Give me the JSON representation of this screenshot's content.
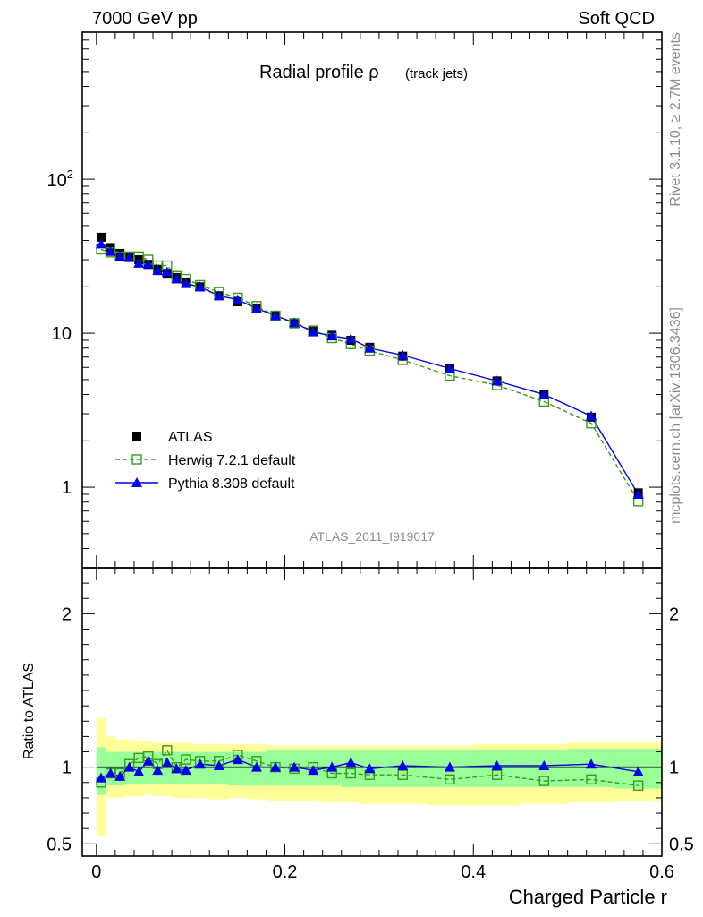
{
  "header": {
    "left": "7000 GeV pp",
    "right": "Soft QCD"
  },
  "side_text": {
    "rivet": "Rivet 3.1.10, ≥ 2.7M events",
    "mcplots": "mcplots.cern.ch [arXiv:1306.3436]"
  },
  "chart_data": [
    {
      "type": "line",
      "title": "Radial profile ρ",
      "title_suffix": "(track jets)",
      "watermark": "ATLAS_2011_I919017",
      "xlabel": "",
      "ylabel": "",
      "ylog": true,
      "xlim": [
        -0.015,
        0.6
      ],
      "ylim": [
        0.3,
        900
      ],
      "y_ticks": [
        {
          "value": 1,
          "label": "1"
        },
        {
          "value": 10,
          "label": "10"
        },
        {
          "value": 100,
          "label": "10",
          "sup": "2"
        }
      ],
      "x": [
        0.005,
        0.015,
        0.025,
        0.035,
        0.045,
        0.055,
        0.065,
        0.075,
        0.085,
        0.095,
        0.11,
        0.13,
        0.15,
        0.17,
        0.19,
        0.21,
        0.23,
        0.25,
        0.27,
        0.29,
        0.325,
        0.375,
        0.425,
        0.475,
        0.525,
        0.575
      ],
      "legend": {
        "position": "lower-left"
      },
      "series": [
        {
          "name": "ATLAS",
          "marker": "square-filled",
          "color": "#000000",
          "values": [
            42,
            36,
            33,
            31.5,
            30,
            28,
            26,
            24.5,
            23,
            21.5,
            20,
            17.5,
            16,
            14.5,
            13,
            11.7,
            10.5,
            9.7,
            9.0,
            8.1,
            7.1,
            5.9,
            4.9,
            4.0,
            2.85,
            0.92
          ]
        },
        {
          "name": "Herwig 7.2.1 default",
          "marker": "square-open",
          "color": "#3a9a1e",
          "dashed": true,
          "values": [
            35,
            33.5,
            31.5,
            31.5,
            31.5,
            30,
            27.5,
            27.5,
            23.5,
            22.5,
            20.5,
            18.5,
            17,
            15,
            13,
            11.6,
            10.4,
            9.3,
            8.5,
            7.7,
            6.7,
            5.3,
            4.6,
            3.6,
            2.6,
            0.81
          ]
        },
        {
          "name": "Pythia 8.308 default",
          "marker": "triangle",
          "color": "#0000ee",
          "values": [
            38,
            34,
            31.5,
            31,
            28.5,
            28,
            25.5,
            25,
            22.5,
            21,
            20,
            17.5,
            16.5,
            14.5,
            13,
            11.7,
            10.2,
            9.6,
            9.2,
            8.0,
            7.2,
            5.9,
            4.9,
            4.0,
            2.9,
            0.9
          ]
        }
      ]
    },
    {
      "type": "line",
      "ylabel": "Ratio to ATLAS",
      "xlabel": "Charged Particle r",
      "xlim": [
        -0.015,
        0.6
      ],
      "ylim": [
        0.42,
        2.3
      ],
      "y_ticks": [
        {
          "value": 0.5,
          "label": "0.5"
        },
        {
          "value": 1,
          "label": "1"
        },
        {
          "value": 2,
          "label": "2"
        }
      ],
      "x_ticks": [
        {
          "value": 0,
          "label": "0"
        },
        {
          "value": 0.2,
          "label": "0.2"
        },
        {
          "value": 0.4,
          "label": "0.4"
        },
        {
          "value": 0.6,
          "label": "0.6"
        }
      ],
      "x": [
        0.005,
        0.015,
        0.025,
        0.035,
        0.045,
        0.055,
        0.065,
        0.075,
        0.085,
        0.095,
        0.11,
        0.13,
        0.15,
        0.17,
        0.19,
        0.21,
        0.23,
        0.25,
        0.27,
        0.29,
        0.325,
        0.375,
        0.425,
        0.475,
        0.525,
        0.575
      ],
      "bin_edges": [
        0,
        0.01,
        0.02,
        0.03,
        0.04,
        0.05,
        0.06,
        0.07,
        0.08,
        0.09,
        0.1,
        0.12,
        0.14,
        0.16,
        0.18,
        0.2,
        0.22,
        0.24,
        0.26,
        0.28,
        0.3,
        0.35,
        0.4,
        0.45,
        0.5,
        0.55,
        0.6
      ],
      "bands": {
        "yellow_color": "#ffff99",
        "green_color": "#99ff99",
        "yellow_lo": [
          0.55,
          0.8,
          0.8,
          0.81,
          0.81,
          0.82,
          0.81,
          0.81,
          0.8,
          0.8,
          0.8,
          0.79,
          0.8,
          0.79,
          0.78,
          0.78,
          0.78,
          0.77,
          0.77,
          0.76,
          0.76,
          0.75,
          0.75,
          0.76,
          0.77,
          0.78
        ],
        "yellow_hi": [
          1.32,
          1.2,
          1.18,
          1.18,
          1.17,
          1.17,
          1.16,
          1.16,
          1.16,
          1.16,
          1.15,
          1.15,
          1.15,
          1.15,
          1.14,
          1.14,
          1.14,
          1.14,
          1.14,
          1.14,
          1.14,
          1.14,
          1.15,
          1.15,
          1.16,
          1.16
        ],
        "green_lo": [
          0.82,
          0.88,
          0.88,
          0.89,
          0.89,
          0.89,
          0.89,
          0.89,
          0.89,
          0.89,
          0.89,
          0.89,
          0.88,
          0.88,
          0.88,
          0.88,
          0.88,
          0.88,
          0.87,
          0.87,
          0.87,
          0.87,
          0.87,
          0.87,
          0.87,
          0.86
        ],
        "green_hi": [
          1.13,
          1.1,
          1.1,
          1.1,
          1.1,
          1.1,
          1.1,
          1.1,
          1.1,
          1.1,
          1.1,
          1.1,
          1.1,
          1.1,
          1.11,
          1.11,
          1.11,
          1.11,
          1.11,
          1.11,
          1.11,
          1.11,
          1.11,
          1.11,
          1.12,
          1.12
        ]
      },
      "series": [
        {
          "name": "Herwig 7.2.1 default",
          "marker": "square-open",
          "color": "#3a9a1e",
          "dashed": true,
          "values": [
            0.9,
            0.96,
            0.96,
            1.02,
            1.06,
            1.07,
            1.02,
            1.11,
            1.0,
            1.05,
            1.04,
            1.04,
            1.08,
            1.04,
            1.0,
            0.99,
            1.0,
            0.96,
            0.96,
            0.95,
            0.95,
            0.92,
            0.95,
            0.91,
            0.92,
            0.88
          ]
        },
        {
          "name": "Pythia 8.308 default",
          "marker": "triangle",
          "color": "#0000ee",
          "values": [
            0.93,
            0.96,
            0.94,
            1.0,
            0.97,
            1.04,
            0.98,
            1.03,
            0.99,
            0.98,
            1.02,
            1.01,
            1.05,
            1.0,
            1.0,
            1.0,
            0.98,
            1.0,
            1.03,
            0.99,
            1.01,
            1.0,
            1.01,
            1.01,
            1.02,
            0.97
          ]
        }
      ]
    }
  ]
}
